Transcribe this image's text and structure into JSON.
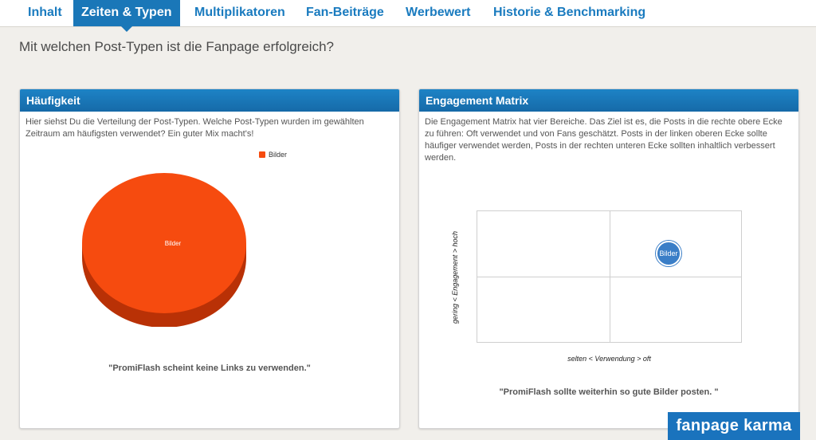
{
  "tabs": [
    {
      "label": "Inhalt",
      "active": false
    },
    {
      "label": "Zeiten & Typen",
      "active": true
    },
    {
      "label": "Multiplikatoren",
      "active": false
    },
    {
      "label": "Fan-Beiträge",
      "active": false
    },
    {
      "label": "Werbewert",
      "active": false
    },
    {
      "label": "Historie & Benchmarking",
      "active": false
    }
  ],
  "page_question": "Mit welchen Post-Typen ist die Fanpage erfolgreich?",
  "frequency_panel": {
    "title": "Häufigkeit",
    "description": "Hier siehst Du die Verteilung der Post-Typen. Welche Post-Typen wurden im gewählten Zeitraum am häufigsten verwendet? Ein guter Mix macht's!",
    "legend_label": "Bilder",
    "slice_label": "Bilder",
    "quote": "\"PromiFlash scheint keine Links zu verwenden.\""
  },
  "matrix_panel": {
    "title": "Engagement Matrix",
    "description": "Die Engagement Matrix hat vier Bereiche. Das Ziel ist es, die Posts in die rechte obere Ecke zu führen: Oft verwendet und von Fans geschätzt. Posts in der linken oberen Ecke sollte häufiger verwendet werden, Posts in der rechten unteren Ecke sollten inhaltlich verbessert werden.",
    "y_axis_label": "gering < Engagement > hoch",
    "x_axis_label": "selten < Verwendung > oft",
    "bubble_label": "Bilder",
    "quote": "\"PromiFlash sollte weiterhin so gute Bilder posten. \""
  },
  "chart_data": [
    {
      "type": "pie",
      "categories": [
        "Bilder"
      ],
      "values": [
        100
      ],
      "legend": "top-right",
      "colors": [
        "#f64b0f"
      ]
    },
    {
      "type": "scatter",
      "series": [
        {
          "name": "Bilder",
          "quadrant": "top-right"
        }
      ],
      "xlabel": "selten < Verwendung > oft",
      "ylabel": "gering < Engagement > hoch",
      "grid": true
    }
  ],
  "brand": {
    "label": "fanpage karma",
    "color": "#1a73bd"
  },
  "colors": {
    "accent": "#1a77b8",
    "pie": "#f64b0f",
    "bubble": "#3a7ec7"
  }
}
